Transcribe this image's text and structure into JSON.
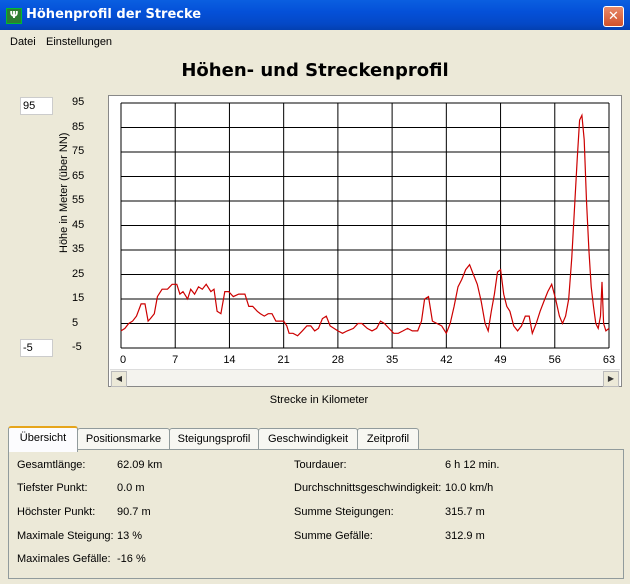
{
  "window": {
    "title": "Höhenprofil der Strecke",
    "icon": "app-icon",
    "close_icon": "close-icon",
    "close_glyph": "✕"
  },
  "menu": [
    {
      "label": "Datei"
    },
    {
      "label": "Einstellungen"
    }
  ],
  "chart_title": "Höhen- und Streckenprofil",
  "y_max_input": "95",
  "y_min_input": "-5",
  "chart_data": {
    "type": "line",
    "title": "Höhen- und Streckenprofil",
    "xlabel": "Strecke in Kilometer",
    "ylabel": "Höhe in Meter (über NN)",
    "xlim": [
      0,
      63
    ],
    "ylim": [
      -5,
      95
    ],
    "x_ticks": [
      "0",
      "7",
      "14",
      "21",
      "28",
      "35",
      "42",
      "49",
      "56",
      "63"
    ],
    "y_ticks": [
      "95",
      "85",
      "75",
      "65",
      "55",
      "45",
      "35",
      "25",
      "15",
      "5",
      "-5"
    ],
    "grid": true,
    "line_color": "#cc0000",
    "series": [
      {
        "points": [
          [
            0,
            2
          ],
          [
            0.5,
            3
          ],
          [
            1,
            5
          ],
          [
            1.5,
            6
          ],
          [
            2,
            8
          ],
          [
            2.6,
            13
          ],
          [
            3.1,
            13
          ],
          [
            3.5,
            6
          ],
          [
            3.8,
            7
          ],
          [
            4.3,
            9
          ],
          [
            4.7,
            16
          ],
          [
            5.3,
            19
          ],
          [
            6,
            19
          ],
          [
            6.6,
            21
          ],
          [
            7.2,
            21
          ],
          [
            7.6,
            17
          ],
          [
            8,
            18
          ],
          [
            8.6,
            15
          ],
          [
            9,
            19
          ],
          [
            9.5,
            17
          ],
          [
            10,
            20
          ],
          [
            10.5,
            19
          ],
          [
            11,
            21
          ],
          [
            11.6,
            18
          ],
          [
            12,
            19
          ],
          [
            12.4,
            10
          ],
          [
            12.9,
            9
          ],
          [
            13.4,
            18
          ],
          [
            13.9,
            18
          ],
          [
            14.5,
            16
          ],
          [
            15.2,
            17
          ],
          [
            16,
            17
          ],
          [
            16.5,
            12
          ],
          [
            17,
            12
          ],
          [
            17.6,
            10
          ],
          [
            18,
            9
          ],
          [
            18.5,
            8
          ],
          [
            19,
            9
          ],
          [
            19.5,
            9
          ],
          [
            20,
            6
          ],
          [
            20.5,
            6
          ],
          [
            21,
            6
          ],
          [
            21.4,
            4
          ],
          [
            21.7,
            1
          ],
          [
            22.2,
            1
          ],
          [
            22.8,
            0
          ],
          [
            23.4,
            2
          ],
          [
            24,
            4
          ],
          [
            24.5,
            4
          ],
          [
            25,
            2
          ],
          [
            25.5,
            3
          ],
          [
            26,
            7
          ],
          [
            26.5,
            8
          ],
          [
            27,
            4
          ],
          [
            27.5,
            3
          ],
          [
            28,
            2
          ],
          [
            28.6,
            1
          ],
          [
            29.2,
            2
          ],
          [
            30,
            3
          ],
          [
            30.6,
            5
          ],
          [
            31.1,
            5
          ],
          [
            31.8,
            3
          ],
          [
            32.4,
            2
          ],
          [
            33,
            3
          ],
          [
            33.5,
            6
          ],
          [
            34,
            5
          ],
          [
            34.6,
            3
          ],
          [
            35.2,
            1
          ],
          [
            35.8,
            1
          ],
          [
            36.4,
            2
          ],
          [
            37,
            3
          ],
          [
            37.6,
            2
          ],
          [
            38.3,
            2
          ],
          [
            38.8,
            6
          ],
          [
            39.2,
            15
          ],
          [
            39.7,
            16
          ],
          [
            40.2,
            6
          ],
          [
            40.8,
            5
          ],
          [
            41.4,
            4
          ],
          [
            42,
            1
          ],
          [
            42.5,
            5
          ],
          [
            43,
            12
          ],
          [
            43.5,
            20
          ],
          [
            44,
            23
          ],
          [
            44.5,
            27
          ],
          [
            45,
            29
          ],
          [
            45.5,
            25
          ],
          [
            46,
            21
          ],
          [
            46.5,
            14
          ],
          [
            47,
            5
          ],
          [
            47.4,
            2
          ],
          [
            47.8,
            10
          ],
          [
            48.2,
            17
          ],
          [
            48.6,
            26
          ],
          [
            49,
            27
          ],
          [
            49.4,
            17
          ],
          [
            49.8,
            12
          ],
          [
            50.2,
            10
          ],
          [
            50.7,
            4
          ],
          [
            51.2,
            2
          ],
          [
            51.7,
            4
          ],
          [
            52.2,
            8
          ],
          [
            52.7,
            8
          ],
          [
            53.1,
            1
          ],
          [
            53.6,
            5
          ],
          [
            54.1,
            10
          ],
          [
            54.6,
            14
          ],
          [
            55.1,
            18
          ],
          [
            55.6,
            21
          ],
          [
            56.1,
            15
          ],
          [
            56.6,
            8
          ],
          [
            57,
            5
          ],
          [
            57.4,
            8
          ],
          [
            57.8,
            15
          ],
          [
            58.2,
            32
          ],
          [
            58.6,
            55
          ],
          [
            58.9,
            72
          ],
          [
            59.2,
            88
          ],
          [
            59.5,
            90
          ],
          [
            59.8,
            80
          ],
          [
            60.1,
            55
          ],
          [
            60.4,
            35
          ],
          [
            60.7,
            20
          ],
          [
            61,
            12
          ],
          [
            61.3,
            5
          ],
          [
            61.6,
            3
          ],
          [
            61.9,
            8
          ],
          [
            62.1,
            22
          ],
          [
            62.3,
            5
          ],
          [
            62.6,
            2
          ],
          [
            63,
            3
          ]
        ]
      }
    ]
  },
  "tabs": [
    {
      "label": "Übersicht",
      "active": true
    },
    {
      "label": "Positionsmarke"
    },
    {
      "label": "Steigungsprofil"
    },
    {
      "label": "Geschwindigkeit"
    },
    {
      "label": "Zeitprofil"
    }
  ],
  "stats_left": [
    {
      "label": "Gesamtlänge:",
      "value": "62.09 km"
    },
    {
      "label": "Tiefster Punkt:",
      "value": "0.0 m"
    },
    {
      "label": "Höchster Punkt:",
      "value": "90.7 m"
    },
    {
      "label": "Maximale Steigung:",
      "value": "13 %"
    },
    {
      "label": "Maximales Gefälle:",
      "value": "-16 %"
    }
  ],
  "stats_right": [
    {
      "label": "Tourdauer:",
      "value": "6 h 12 min."
    },
    {
      "label": "Durchschnittsgeschwindigkeit:",
      "value": "10.0 km/h"
    },
    {
      "label": "Summe Steigungen:",
      "value": "315.7 m"
    },
    {
      "label": "Summe Gefälle:",
      "value": "312.9 m"
    }
  ]
}
